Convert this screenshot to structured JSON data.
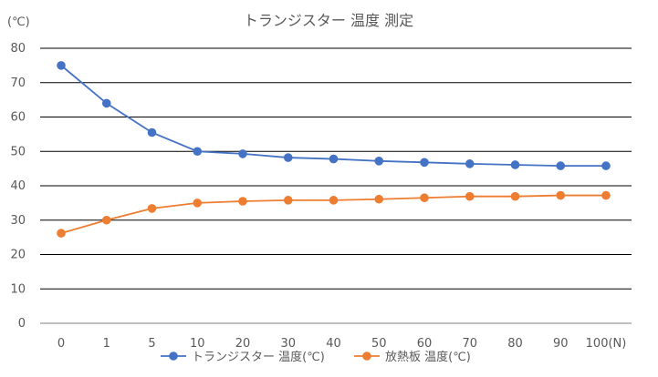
{
  "chart_data": {
    "type": "line",
    "title": "トランジスター 温度 測定",
    "y_unit_label": "(℃)",
    "categories": [
      "0",
      "1",
      "5",
      "10",
      "20",
      "30",
      "40",
      "50",
      "60",
      "70",
      "80",
      "90",
      "100(N)"
    ],
    "ylim": [
      0,
      80
    ],
    "yticks": [
      0,
      10,
      20,
      30,
      40,
      50,
      60,
      70,
      80
    ],
    "grid": true,
    "legend_position": "bottom",
    "series": [
      {
        "name": "トランジスター 温度(℃)",
        "color": "#4472C4",
        "values": [
          75.0,
          64.0,
          55.5,
          50.0,
          49.3,
          48.2,
          47.8,
          47.2,
          46.8,
          46.4,
          46.1,
          45.8,
          45.8
        ]
      },
      {
        "name": "放熱板 温度(℃)",
        "color": "#ED7D31",
        "values": [
          26.2,
          30.0,
          33.4,
          35.0,
          35.5,
          35.8,
          35.8,
          36.1,
          36.5,
          36.9,
          36.9,
          37.2,
          37.2
        ]
      }
    ]
  }
}
